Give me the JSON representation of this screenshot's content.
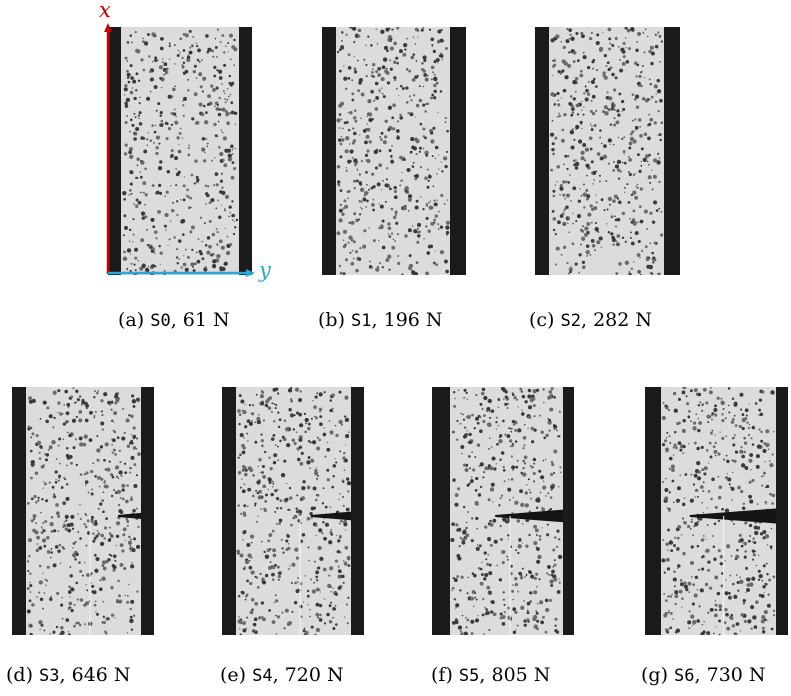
{
  "figure": {
    "axes": {
      "x_label": "x",
      "y_label": "y",
      "x_color": "#cc0000",
      "y_color": "#2aa7d6"
    },
    "panels": [
      {
        "letter": "(a)",
        "stage": "S0",
        "force": "61 N",
        "crack": 0
      },
      {
        "letter": "(b)",
        "stage": "S1",
        "force": "196 N",
        "crack": 0
      },
      {
        "letter": "(c)",
        "stage": "S2",
        "force": "282 N",
        "crack": 0
      },
      {
        "letter": "(d)",
        "stage": "S3",
        "force": "646 N",
        "crack": 0.2
      },
      {
        "letter": "(e)",
        "stage": "S4",
        "force": "720 N",
        "crack": 0.35
      },
      {
        "letter": "(f)",
        "stage": "S5",
        "force": "805 N",
        "crack": 0.6
      },
      {
        "letter": "(g)",
        "stage": "S6",
        "force": "730 N",
        "crack": 0.75
      }
    ]
  }
}
